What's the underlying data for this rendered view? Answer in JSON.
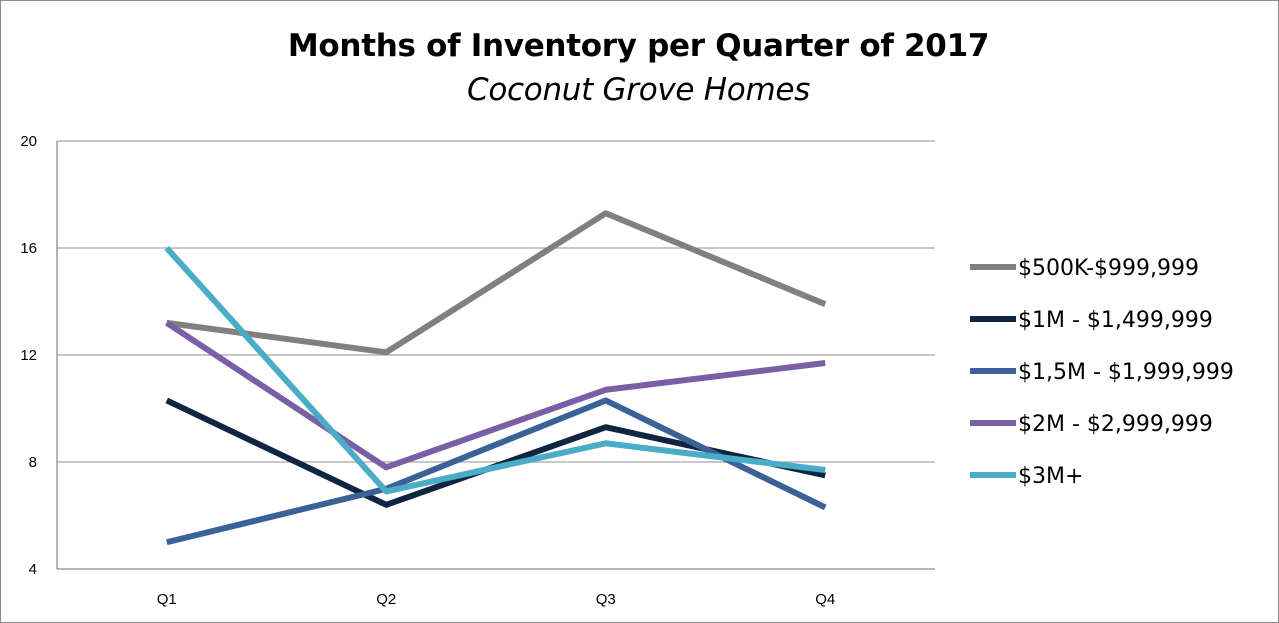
{
  "chart_data": {
    "type": "line",
    "title": "Months of Inventory per Quarter of 2017",
    "subtitle": "Coconut Grove Homes",
    "xlabel": "",
    "ylabel": "",
    "categories": [
      "Q1",
      "Q2",
      "Q3",
      "Q4"
    ],
    "ylim": [
      4,
      20
    ],
    "yticks": [
      4,
      8,
      12,
      16,
      20
    ],
    "grid": true,
    "legend_position": "right",
    "series": [
      {
        "name": "$500K-$999,999",
        "color": "#808080",
        "values": [
          13.2,
          12.1,
          17.3,
          13.9
        ]
      },
      {
        "name": "$1M - $1,499,999",
        "color": "#0f2540",
        "values": [
          10.3,
          6.4,
          9.3,
          7.5
        ]
      },
      {
        "name": "$1,5M - $1,999,999",
        "color": "#3b6296",
        "values": [
          5.0,
          7.0,
          10.3,
          6.3
        ]
      },
      {
        "name": "$2M - $2,999,999",
        "color": "#7b5fa6",
        "values": [
          13.2,
          7.8,
          10.7,
          11.7
        ]
      },
      {
        "name": "$3M+",
        "color": "#4aacc6",
        "values": [
          16.0,
          6.9,
          8.7,
          7.7
        ]
      }
    ]
  }
}
